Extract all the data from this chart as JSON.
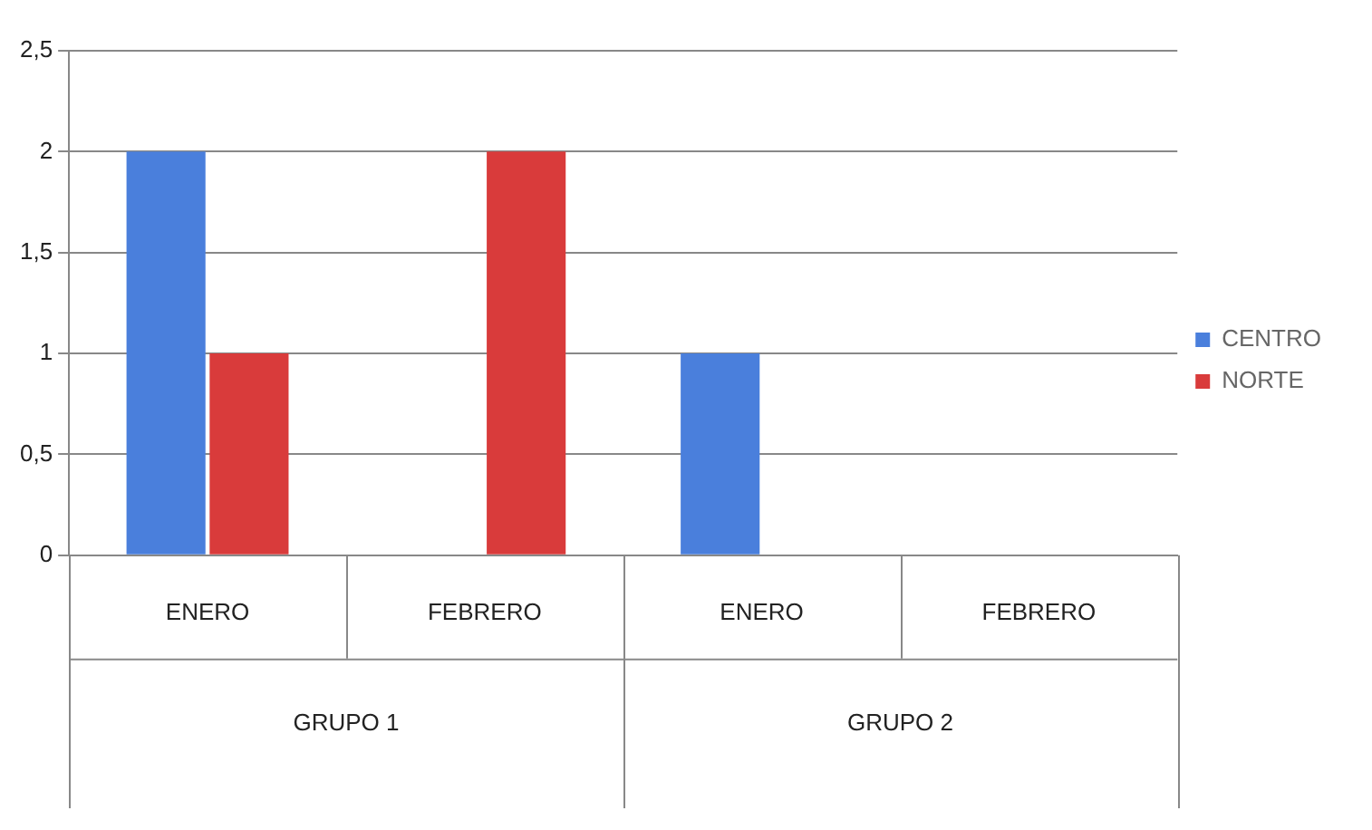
{
  "chart_data": {
    "type": "bar",
    "categories": [
      "ENERO",
      "FEBRERO",
      "ENERO",
      "FEBRERO"
    ],
    "series": [
      {
        "name": "CENTRO",
        "color": "#4a7fdc",
        "values": [
          2,
          null,
          1,
          null
        ]
      },
      {
        "name": "NORTE",
        "color": "#d93b3b",
        "values": [
          1,
          2,
          null,
          null
        ]
      }
    ],
    "ylim": [
      0,
      2.5
    ],
    "yticks": [
      0,
      {
        "value": 0.5,
        "label": "0,5"
      },
      1,
      {
        "value": 1.5,
        "label": "1,5"
      },
      2,
      {
        "value": 2.5,
        "label": "2,5"
      }
    ],
    "grid": "y",
    "legend": "right",
    "annotations": [
      "GRUPO 1",
      "GRUPO 2"
    ]
  }
}
